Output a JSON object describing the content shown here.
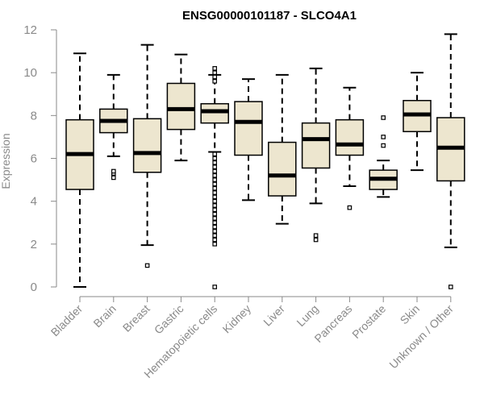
{
  "chart_data": {
    "type": "boxplot",
    "title": "ENSG00000101187 - SLCO4A1",
    "xlabel": "",
    "ylabel": "Expression",
    "ylim": [
      0,
      12
    ],
    "yticks": [
      0,
      2,
      4,
      6,
      8,
      10,
      12
    ],
    "colors": {
      "box_fill": "#ede6cf",
      "box_stroke": "#000000",
      "axis": "#8a8a8a",
      "title": "#000000"
    },
    "categories": [
      "Bladder",
      "Brain",
      "Breast",
      "Gastric",
      "Hematopoietic cells",
      "Kidney",
      "Liver",
      "Lung",
      "Pancreas",
      "Prostate",
      "Skin",
      "Unknown / Other"
    ],
    "boxes": [
      {
        "category": "Bladder",
        "whisker_low": 0.0,
        "q1": 4.55,
        "median": 6.2,
        "q3": 7.8,
        "whisker_high": 10.9,
        "outliers": []
      },
      {
        "category": "Brain",
        "whisker_low": 6.1,
        "q1": 7.2,
        "median": 7.75,
        "q3": 8.3,
        "whisker_high": 9.9,
        "outliers": [
          5.1,
          5.3,
          5.4
        ]
      },
      {
        "category": "Breast",
        "whisker_low": 1.95,
        "q1": 5.35,
        "median": 6.25,
        "q3": 7.85,
        "whisker_high": 11.3,
        "outliers": [
          1.0
        ]
      },
      {
        "category": "Gastric",
        "whisker_low": 5.9,
        "q1": 7.35,
        "median": 8.3,
        "q3": 9.5,
        "whisker_high": 10.85,
        "outliers": []
      },
      {
        "category": "Hematopoietic cells",
        "whisker_low": 6.3,
        "q1": 7.65,
        "median": 8.2,
        "q3": 8.55,
        "whisker_high": 9.9,
        "outliers": [
          0.0,
          2.0,
          2.2,
          2.4,
          2.6,
          2.8,
          3.0,
          3.2,
          3.4,
          3.6,
          3.8,
          4.0,
          4.2,
          4.4,
          4.6,
          4.8,
          5.0,
          5.2,
          5.4,
          5.6,
          5.8,
          6.0,
          6.2,
          9.6,
          9.8,
          10.0,
          10.2
        ]
      },
      {
        "category": "Kidney",
        "whisker_low": 4.05,
        "q1": 6.15,
        "median": 7.7,
        "q3": 8.65,
        "whisker_high": 9.7,
        "outliers": []
      },
      {
        "category": "Liver",
        "whisker_low": 2.95,
        "q1": 4.25,
        "median": 5.2,
        "q3": 6.75,
        "whisker_high": 9.9,
        "outliers": []
      },
      {
        "category": "Lung",
        "whisker_low": 3.9,
        "q1": 5.55,
        "median": 6.9,
        "q3": 7.65,
        "whisker_high": 10.2,
        "outliers": [
          2.2,
          2.4
        ]
      },
      {
        "category": "Pancreas",
        "whisker_low": 4.7,
        "q1": 6.15,
        "median": 6.65,
        "q3": 7.8,
        "whisker_high": 9.3,
        "outliers": [
          3.7
        ]
      },
      {
        "category": "Prostate",
        "whisker_low": 4.2,
        "q1": 4.55,
        "median": 5.05,
        "q3": 5.45,
        "whisker_high": 5.9,
        "outliers": [
          6.6,
          7.0,
          7.9
        ]
      },
      {
        "category": "Skin",
        "whisker_low": 5.45,
        "q1": 7.25,
        "median": 8.05,
        "q3": 8.7,
        "whisker_high": 10.0,
        "outliers": []
      },
      {
        "category": "Unknown / Other",
        "whisker_low": 1.85,
        "q1": 4.95,
        "median": 6.5,
        "q3": 7.9,
        "whisker_high": 11.8,
        "outliers": [
          0.0
        ]
      }
    ]
  }
}
